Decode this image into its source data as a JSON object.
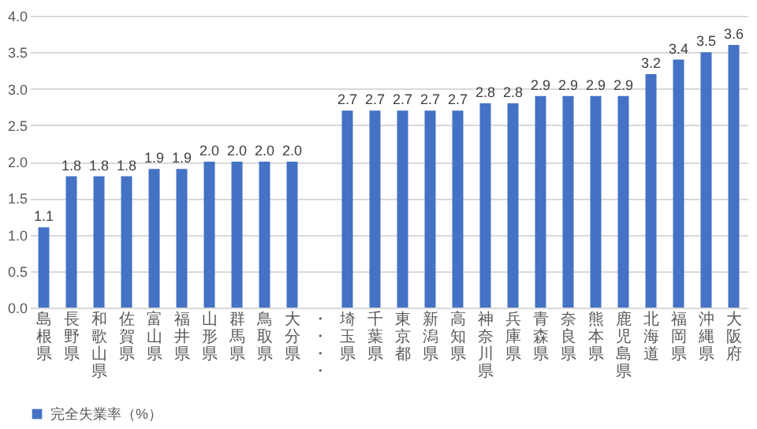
{
  "chart_data": {
    "type": "bar",
    "categories": [
      "島根県",
      "長野県",
      "和歌山県",
      "佐賀県",
      "富山県",
      "福井県",
      "山形県",
      "群馬県",
      "鳥取県",
      "大分県",
      "・・・・",
      "埼玉県",
      "千葉県",
      "東京都",
      "新潟県",
      "高知県",
      "神奈川県",
      "兵庫県",
      "青森県",
      "奈良県",
      "熊本県",
      "鹿児島県",
      "北海道",
      "福岡県",
      "沖縄県",
      "大阪府"
    ],
    "series": [
      {
        "name": "完全失業率（%）",
        "color": "#4472c4",
        "values": [
          1.1,
          1.8,
          1.8,
          1.8,
          1.9,
          1.9,
          2.0,
          2.0,
          2.0,
          2.0,
          null,
          2.7,
          2.7,
          2.7,
          2.7,
          2.7,
          2.8,
          2.8,
          2.9,
          2.9,
          2.9,
          2.9,
          3.2,
          3.4,
          3.5,
          3.6
        ],
        "value_labels": [
          "1.1",
          "1.8",
          "1.8",
          "1.8",
          "1.9",
          "1.9",
          "2.0",
          "2.0",
          "2.0",
          "2.0",
          null,
          "2.7",
          "2.7",
          "2.7",
          "2.7",
          "2.7",
          "2.8",
          "2.8",
          "2.9",
          "2.9",
          "2.9",
          "2.9",
          "3.2",
          "3.4",
          "3.5",
          "3.6"
        ]
      }
    ],
    "ylim": [
      0,
      4
    ],
    "yticks": [
      {
        "value": 0,
        "label": "0.0"
      },
      {
        "value": 0.5,
        "label": "0.5"
      },
      {
        "value": 1,
        "label": "1.0"
      },
      {
        "value": 1.5,
        "label": "1.5"
      },
      {
        "value": 2,
        "label": "2.0"
      },
      {
        "value": 2.5,
        "label": "2.5"
      },
      {
        "value": 3,
        "label": "3.0"
      },
      {
        "value": 3.5,
        "label": "3.5"
      },
      {
        "value": 4,
        "label": "4.0"
      }
    ],
    "grid": "y",
    "legend": "bottom"
  }
}
